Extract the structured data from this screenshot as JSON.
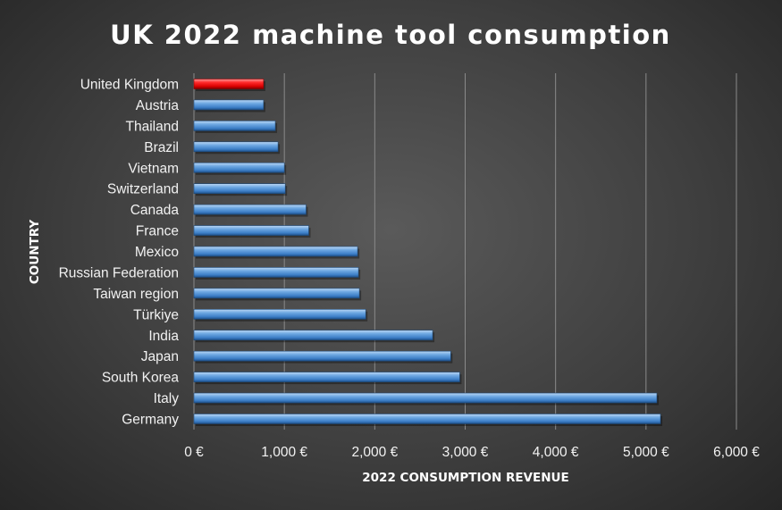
{
  "chart_data": {
    "type": "bar",
    "orientation": "horizontal",
    "title": "UK 2022 machine tool consumption",
    "xlabel": "2022 CONSUMPTION REVENUE",
    "ylabel": "COUNTRY",
    "categories": [
      "United Kingdom",
      "Austria",
      "Thailand",
      "Brazil",
      "Vietnam",
      "Switzerland",
      "Canada",
      "France",
      "Mexico",
      "Russian Federation",
      "Taiwan region",
      "Türkiye",
      "India",
      "Japan",
      "South Korea",
      "Italy",
      "Germany"
    ],
    "values": [
      770,
      770,
      900,
      930,
      1000,
      1010,
      1240,
      1270,
      1810,
      1820,
      1830,
      1900,
      2640,
      2840,
      2940,
      5120,
      5160
    ],
    "xlim": [
      0,
      6000
    ],
    "xticks": [
      0,
      1000,
      2000,
      3000,
      4000,
      5000,
      6000
    ],
    "xtick_labels": [
      "0 €",
      "1,000 €",
      "2,000 €",
      "3,000 €",
      "4,000 €",
      "5,000 €",
      "6,000 €"
    ],
    "grid": "vertical",
    "legend": "none",
    "colors": {
      "default": "#5b9bd5",
      "highlight": "#ff0000"
    },
    "highlight_category": "United Kingdom"
  }
}
